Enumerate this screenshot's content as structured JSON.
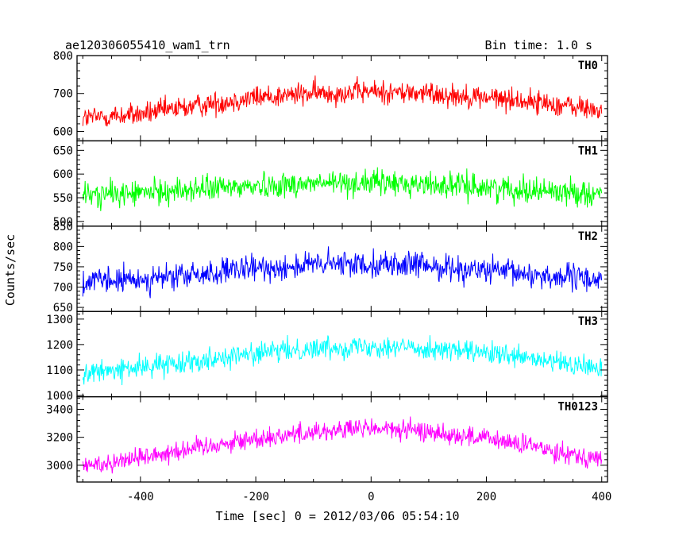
{
  "chart_data": {
    "type": "line",
    "title_left": "ae120306055410_wam1_trn",
    "title_right": "Bin time: 1.0 s",
    "xlabel": "Time [sec] 0 = 2012/03/06 05:54:10",
    "ylabel": "Counts/sec",
    "xlim": [
      -510,
      410
    ],
    "x_ticks": [
      -400,
      -200,
      0,
      200,
      400
    ],
    "panels": [
      {
        "name": "TH0",
        "color": "#ff0000",
        "ylim": [
          575,
          800
        ],
        "yticks": [
          600,
          700,
          800
        ],
        "x": [
          -500,
          -400,
          -300,
          -200,
          -100,
          0,
          100,
          200,
          300,
          400
        ],
        "y": [
          635,
          645,
          668,
          690,
          700,
          705,
          700,
          690,
          675,
          655
        ],
        "noise": 40
      },
      {
        "name": "TH1",
        "color": "#00ff00",
        "ylim": [
          490,
          670
        ],
        "yticks": [
          500,
          550,
          600,
          650
        ],
        "x": [
          -500,
          -400,
          -300,
          -200,
          -100,
          0,
          100,
          200,
          300,
          400
        ],
        "y": [
          555,
          560,
          568,
          575,
          580,
          582,
          578,
          572,
          565,
          558
        ],
        "noise": 35
      },
      {
        "name": "TH2",
        "color": "#0000ff",
        "ylim": [
          640,
          850
        ],
        "yticks": [
          650,
          700,
          750,
          800,
          850
        ],
        "x": [
          -500,
          -400,
          -300,
          -200,
          -100,
          0,
          100,
          200,
          300,
          400
        ],
        "y": [
          712,
          718,
          730,
          745,
          755,
          758,
          752,
          740,
          728,
          718
        ],
        "noise": 42
      },
      {
        "name": "TH3",
        "color": "#00ffff",
        "ylim": [
          995,
          1330
        ],
        "yticks": [
          1000,
          1100,
          1200,
          1300
        ],
        "x": [
          -500,
          -400,
          -300,
          -200,
          -100,
          0,
          100,
          200,
          300,
          400
        ],
        "y": [
          1085,
          1110,
          1140,
          1165,
          1185,
          1195,
          1185,
          1165,
          1135,
          1105
        ],
        "noise": 55
      },
      {
        "name": "TH0123",
        "color": "#ff00ff",
        "ylim": [
          2880,
          3490
        ],
        "yticks": [
          3000,
          3200,
          3400
        ],
        "x": [
          -500,
          -400,
          -300,
          -200,
          -100,
          0,
          100,
          200,
          300,
          400
        ],
        "y": [
          2990,
          3060,
          3130,
          3190,
          3240,
          3265,
          3240,
          3190,
          3120,
          3040
        ],
        "noise": 95
      }
    ]
  }
}
